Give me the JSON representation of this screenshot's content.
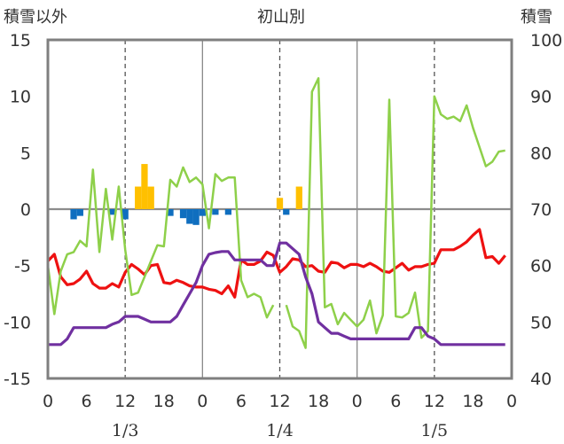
{
  "chart_data": {
    "type": "line",
    "title": "初山別",
    "left_axis_label": "積雪以外",
    "right_axis_label": "積雪",
    "left_ylim": [
      -15,
      15
    ],
    "left_ticks": [
      15,
      10,
      5,
      0,
      -5,
      -10,
      -15
    ],
    "right_ylim": [
      40,
      100
    ],
    "right_ticks": [
      100,
      90,
      80,
      70,
      60,
      50,
      40
    ],
    "x_range_hours": [
      0,
      72
    ],
    "x_tick_labels": [
      "0",
      "6",
      "12",
      "18",
      "0",
      "6",
      "12",
      "18",
      "0",
      "6",
      "12",
      "18",
      "0"
    ],
    "x_tick_hours": [
      0,
      6,
      12,
      18,
      24,
      30,
      36,
      42,
      48,
      54,
      60,
      66,
      72
    ],
    "date_labels": [
      {
        "text": "1/3",
        "hour": 12
      },
      {
        "text": "1/4",
        "hour": 36
      },
      {
        "text": "1/5",
        "hour": 60
      }
    ],
    "grid": "dashed vertical lines at hours 12, 36, 60",
    "colors": {
      "red": "#ee1111",
      "green": "#8ed04a",
      "purple": "#7030a0",
      "blue": "#0f6ebf",
      "orange": "#ffc000",
      "frame": "#7f7f7f"
    },
    "series": [
      {
        "axis": "left",
        "color": "red",
        "points": [
          [
            0,
            -4.6
          ],
          [
            1,
            -4
          ],
          [
            2,
            -6
          ],
          [
            3,
            -6.7
          ],
          [
            4,
            -6.6
          ],
          [
            5,
            -6.2
          ],
          [
            6,
            -5.5
          ],
          [
            7,
            -6.6
          ],
          [
            8,
            -7
          ],
          [
            9,
            -7
          ],
          [
            10,
            -6.6
          ],
          [
            11,
            -6.9
          ],
          [
            12,
            -5.6
          ],
          [
            13,
            -4.9
          ],
          [
            14,
            -5.3
          ],
          [
            15,
            -5.8
          ],
          [
            16,
            -5
          ],
          [
            17,
            -4.9
          ],
          [
            18,
            -6.5
          ],
          [
            19,
            -6.6
          ],
          [
            20,
            -6.3
          ],
          [
            21,
            -6.5
          ],
          [
            22,
            -6.8
          ],
          [
            23,
            -6.9
          ],
          [
            24,
            -6.9
          ],
          [
            25,
            -7.1
          ],
          [
            26,
            -7.2
          ],
          [
            27,
            -7.5
          ],
          [
            28,
            -6.8
          ],
          [
            29,
            -7.8
          ],
          [
            30,
            -4.5
          ],
          [
            31,
            -4.9
          ],
          [
            32,
            -4.9
          ],
          [
            33,
            -4.6
          ],
          [
            34,
            -3.8
          ],
          [
            35,
            -4.1
          ],
          [
            36,
            -5.6
          ],
          [
            37,
            -5.1
          ],
          [
            38,
            -4.4
          ],
          [
            39,
            -4.5
          ],
          [
            40,
            -5.1
          ],
          [
            41,
            -5
          ],
          [
            42,
            -5.5
          ],
          [
            43,
            -5.6
          ],
          [
            44,
            -4.7
          ],
          [
            45,
            -4.8
          ],
          [
            46,
            -5.2
          ],
          [
            47,
            -4.9
          ],
          [
            48,
            -4.9
          ],
          [
            49,
            -5.1
          ],
          [
            50,
            -4.8
          ],
          [
            51,
            -5.1
          ],
          [
            52,
            -5.5
          ],
          [
            53,
            -5.6
          ],
          [
            54,
            -5.2
          ],
          [
            55,
            -4.8
          ],
          [
            56,
            -5.4
          ],
          [
            57,
            -5.1
          ],
          [
            58,
            -5.1
          ],
          [
            59,
            -4.9
          ],
          [
            60,
            -4.8
          ],
          [
            61,
            -3.6
          ],
          [
            62,
            -3.6
          ],
          [
            63,
            -3.6
          ],
          [
            64,
            -3.3
          ],
          [
            65,
            -2.9
          ],
          [
            66,
            -2.3
          ],
          [
            67,
            -1.8
          ],
          [
            68,
            -4.3
          ],
          [
            69,
            -4.2
          ],
          [
            70,
            -4.8
          ],
          [
            71,
            -4.1
          ]
        ]
      },
      {
        "axis": "left",
        "color": "green",
        "points": [
          [
            0,
            -5
          ],
          [
            1,
            -9.3
          ],
          [
            2,
            -5.5
          ],
          [
            3,
            -4
          ],
          [
            4,
            -3.8
          ],
          [
            5,
            -2.8
          ],
          [
            6,
            -3.3
          ],
          [
            7,
            3.5
          ],
          [
            8,
            -3.8
          ],
          [
            9,
            1.8
          ],
          [
            10,
            -2.7
          ],
          [
            11,
            2
          ],
          [
            12,
            -3.6
          ],
          [
            13,
            -7.6
          ],
          [
            14,
            -7.4
          ],
          [
            15,
            -6
          ],
          [
            16,
            -4.6
          ],
          [
            17,
            -3.2
          ],
          [
            18,
            -3.3
          ],
          [
            19,
            2.6
          ],
          [
            20,
            2
          ],
          [
            21,
            3.7
          ],
          [
            22,
            2.4
          ],
          [
            23,
            2.8
          ],
          [
            24,
            2.2
          ],
          [
            25,
            -1.7
          ],
          [
            26,
            3.1
          ],
          [
            27,
            2.5
          ],
          [
            28,
            2.8
          ],
          [
            29,
            2.8
          ],
          [
            30,
            -6.3
          ],
          [
            31,
            -7.8
          ],
          [
            32,
            -7.5
          ],
          [
            33,
            -7.8
          ],
          [
            34,
            -9.6
          ],
          [
            35,
            -8.5
          ]
        ],
        "points_b": [
          [
            37,
            -8.5
          ],
          [
            38,
            -10.4
          ],
          [
            39,
            -10.8
          ],
          [
            40,
            -12.3
          ],
          [
            41,
            10.4
          ],
          [
            42,
            11.6
          ],
          [
            43,
            -8.7
          ],
          [
            44,
            -8.4
          ],
          [
            45,
            -10.2
          ],
          [
            46,
            -9.2
          ],
          [
            47,
            -9.8
          ],
          [
            48,
            -10.4
          ],
          [
            49,
            -9.8
          ],
          [
            50,
            -8.1
          ],
          [
            51,
            -11
          ],
          [
            52,
            -9.4
          ],
          [
            53,
            9.7
          ],
          [
            54,
            -9.5
          ],
          [
            55,
            -9.6
          ],
          [
            56,
            -9.2
          ],
          [
            57,
            -7.4
          ],
          [
            58,
            -11.4
          ],
          [
            59,
            -10.8
          ],
          [
            60,
            10
          ],
          [
            61,
            8.4
          ],
          [
            62,
            8
          ],
          [
            63,
            8.2
          ],
          [
            64,
            7.8
          ],
          [
            65,
            9.2
          ],
          [
            66,
            7.2
          ],
          [
            67,
            5.5
          ],
          [
            68,
            3.8
          ],
          [
            69,
            4.2
          ],
          [
            70,
            5.1
          ],
          [
            71,
            5.2
          ]
        ]
      },
      {
        "axis": "right",
        "color": "purple",
        "points": [
          [
            0,
            46
          ],
          [
            1,
            46
          ],
          [
            2,
            46
          ],
          [
            3,
            47
          ],
          [
            4,
            49
          ],
          [
            5,
            49
          ],
          [
            6,
            49
          ],
          [
            7,
            49
          ],
          [
            8,
            49
          ],
          [
            9,
            49
          ],
          [
            10,
            49.6
          ],
          [
            11,
            50
          ],
          [
            12,
            51
          ],
          [
            13,
            51
          ],
          [
            14,
            51
          ],
          [
            15,
            50.5
          ],
          [
            16,
            50
          ],
          [
            17,
            50
          ],
          [
            18,
            50
          ],
          [
            19,
            50
          ],
          [
            20,
            51
          ],
          [
            21,
            53
          ],
          [
            22,
            55
          ],
          [
            23,
            57
          ],
          [
            24,
            60
          ],
          [
            25,
            62
          ],
          [
            26,
            62.3
          ],
          [
            27,
            62.5
          ],
          [
            28,
            62.5
          ],
          [
            29,
            61
          ],
          [
            30,
            61
          ],
          [
            31,
            61
          ],
          [
            32,
            61
          ],
          [
            33,
            61
          ],
          [
            34,
            60
          ],
          [
            35,
            60
          ],
          [
            36,
            64
          ],
          [
            37,
            64
          ],
          [
            38,
            63
          ],
          [
            39,
            62
          ],
          [
            40,
            58
          ],
          [
            41,
            55
          ],
          [
            42,
            50
          ],
          [
            43,
            49
          ],
          [
            44,
            48
          ],
          [
            45,
            48
          ],
          [
            46,
            47.5
          ],
          [
            47,
            47
          ],
          [
            48,
            47
          ],
          [
            49,
            47
          ],
          [
            50,
            47
          ],
          [
            51,
            47
          ],
          [
            52,
            47
          ],
          [
            53,
            47
          ],
          [
            54,
            47
          ],
          [
            55,
            47
          ],
          [
            56,
            47
          ],
          [
            57,
            49
          ],
          [
            58,
            49
          ],
          [
            59,
            47.5
          ],
          [
            60,
            47
          ],
          [
            61,
            46
          ],
          [
            62,
            46
          ],
          [
            63,
            46
          ],
          [
            64,
            46
          ],
          [
            65,
            46
          ],
          [
            66,
            46
          ],
          [
            67,
            46
          ],
          [
            68,
            46
          ],
          [
            69,
            46
          ],
          [
            70,
            46
          ],
          [
            71,
            46
          ]
        ]
      }
    ],
    "bars": [
      {
        "hour": 4,
        "value": -0.9,
        "color": "blue"
      },
      {
        "hour": 5,
        "value": -0.6,
        "color": "blue"
      },
      {
        "hour": 10,
        "value": -0.5,
        "color": "blue"
      },
      {
        "hour": 12,
        "value": -0.9,
        "color": "blue"
      },
      {
        "hour": 14,
        "value": 2,
        "color": "orange"
      },
      {
        "hour": 15,
        "value": 4,
        "color": "orange"
      },
      {
        "hour": 16,
        "value": 2,
        "color": "orange"
      },
      {
        "hour": 19,
        "value": -0.6,
        "color": "blue"
      },
      {
        "hour": 21,
        "value": -0.8,
        "color": "blue"
      },
      {
        "hour": 22,
        "value": -1.3,
        "color": "blue"
      },
      {
        "hour": 23,
        "value": -1.4,
        "color": "blue"
      },
      {
        "hour": 24,
        "value": -0.6,
        "color": "blue"
      },
      {
        "hour": 26,
        "value": -0.5,
        "color": "blue"
      },
      {
        "hour": 28,
        "value": -0.5,
        "color": "blue"
      },
      {
        "hour": 36,
        "value": 1,
        "color": "orange"
      },
      {
        "hour": 37,
        "value": -0.5,
        "color": "blue"
      },
      {
        "hour": 39,
        "value": 2,
        "color": "orange"
      }
    ]
  }
}
